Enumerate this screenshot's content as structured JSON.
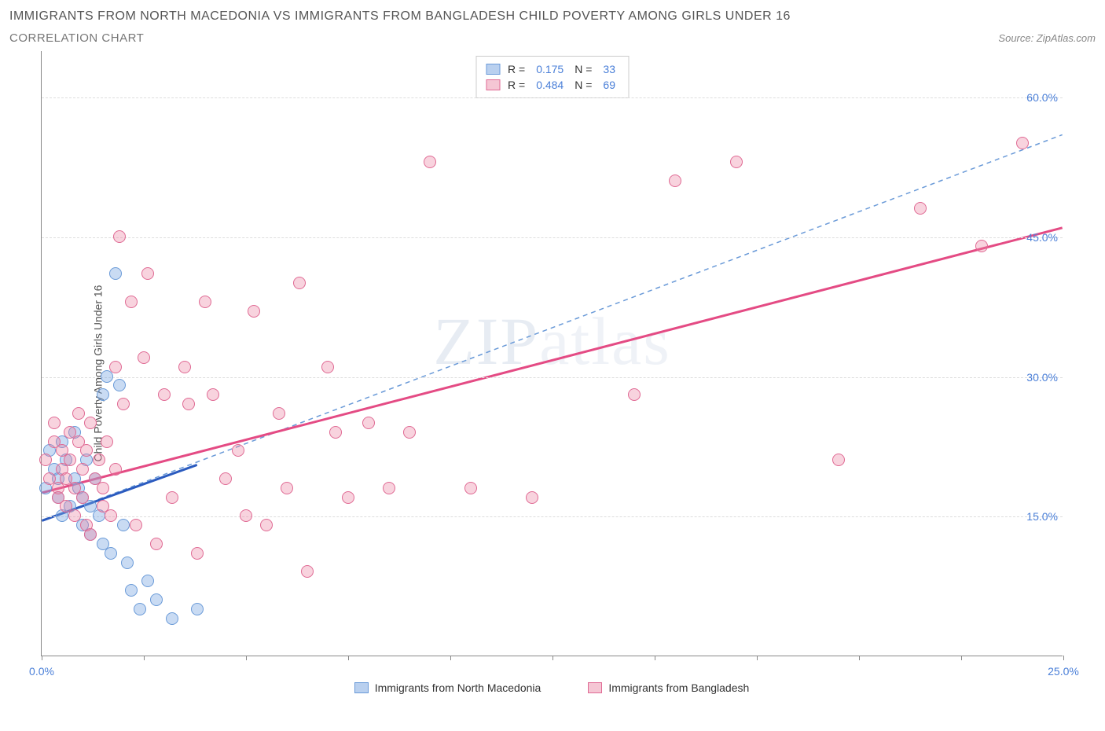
{
  "title": "IMMIGRANTS FROM NORTH MACEDONIA VS IMMIGRANTS FROM BANGLADESH CHILD POVERTY AMONG GIRLS UNDER 16",
  "subtitle": "CORRELATION CHART",
  "source_label": "Source:",
  "source_name": "ZipAtlas.com",
  "y_axis_label": "Child Poverty Among Girls Under 16",
  "watermark_bold": "ZIP",
  "watermark_thin": "atlas",
  "chart": {
    "type": "scatter",
    "background_color": "#ffffff",
    "grid_color": "#dddddd",
    "axis_color": "#888888",
    "text_color": "#555555",
    "value_color": "#4a7fd8",
    "xlim": [
      0,
      25
    ],
    "ylim": [
      0,
      65
    ],
    "xticks": [
      0,
      2.5,
      5,
      7.5,
      10,
      12.5,
      15,
      17.5,
      20,
      22.5,
      25
    ],
    "xtick_labels": {
      "0": "0.0%",
      "25": "25.0%"
    },
    "yticks": [
      15,
      30,
      45,
      60
    ],
    "ytick_labels": [
      "15.0%",
      "30.0%",
      "45.0%",
      "60.0%"
    ],
    "point_radius": 8,
    "point_opacity": 0.5,
    "series": [
      {
        "name": "Immigrants from North Macedonia",
        "color_fill": "rgba(120,165,225,0.4)",
        "color_stroke": "#6a9ad8",
        "swatch_fill": "#b9d0ef",
        "swatch_border": "#6a9ad8",
        "R": "0.175",
        "N": "33",
        "trend_solid": {
          "x1": 0,
          "y1": 14.5,
          "x2": 3.8,
          "y2": 20.5,
          "color": "#2b5bbf",
          "width": 3
        },
        "trend_dash": {
          "x1": 0,
          "y1": 14.5,
          "x2": 25,
          "y2": 56,
          "color": "#6a9ad8",
          "width": 1.5
        },
        "points": [
          [
            0.1,
            18
          ],
          [
            0.2,
            22
          ],
          [
            0.3,
            20
          ],
          [
            0.4,
            17
          ],
          [
            0.4,
            19
          ],
          [
            0.5,
            15
          ],
          [
            0.5,
            23
          ],
          [
            0.6,
            21
          ],
          [
            0.7,
            16
          ],
          [
            0.8,
            19
          ],
          [
            0.8,
            24
          ],
          [
            0.9,
            18
          ],
          [
            1.0,
            14
          ],
          [
            1.0,
            17
          ],
          [
            1.1,
            21
          ],
          [
            1.2,
            13
          ],
          [
            1.2,
            16
          ],
          [
            1.3,
            19
          ],
          [
            1.4,
            15
          ],
          [
            1.5,
            12
          ],
          [
            1.5,
            28
          ],
          [
            1.6,
            30
          ],
          [
            1.7,
            11
          ],
          [
            1.8,
            41
          ],
          [
            1.9,
            29
          ],
          [
            2.0,
            14
          ],
          [
            2.1,
            10
          ],
          [
            2.2,
            7
          ],
          [
            2.4,
            5
          ],
          [
            2.6,
            8
          ],
          [
            2.8,
            6
          ],
          [
            3.2,
            4
          ],
          [
            3.8,
            5
          ]
        ]
      },
      {
        "name": "Immigrants from Bangladesh",
        "color_fill": "rgba(235,130,160,0.35)",
        "color_stroke": "#e06a94",
        "swatch_fill": "#f5c6d4",
        "swatch_border": "#e06a94",
        "R": "0.484",
        "N": "69",
        "trend_solid": {
          "x1": 0,
          "y1": 17.5,
          "x2": 25,
          "y2": 46,
          "color": "#e44b84",
          "width": 3
        },
        "trend_dash": null,
        "points": [
          [
            0.1,
            21
          ],
          [
            0.2,
            19
          ],
          [
            0.3,
            23
          ],
          [
            0.3,
            25
          ],
          [
            0.4,
            18
          ],
          [
            0.4,
            17
          ],
          [
            0.5,
            20
          ],
          [
            0.5,
            22
          ],
          [
            0.6,
            19
          ],
          [
            0.6,
            16
          ],
          [
            0.7,
            21
          ],
          [
            0.7,
            24
          ],
          [
            0.8,
            18
          ],
          [
            0.8,
            15
          ],
          [
            0.9,
            23
          ],
          [
            0.9,
            26
          ],
          [
            1.0,
            20
          ],
          [
            1.0,
            17
          ],
          [
            1.1,
            22
          ],
          [
            1.1,
            14
          ],
          [
            1.2,
            25
          ],
          [
            1.2,
            13
          ],
          [
            1.3,
            19
          ],
          [
            1.4,
            21
          ],
          [
            1.5,
            18
          ],
          [
            1.5,
            16
          ],
          [
            1.6,
            23
          ],
          [
            1.7,
            15
          ],
          [
            1.8,
            20
          ],
          [
            1.8,
            31
          ],
          [
            1.9,
            45
          ],
          [
            2.0,
            27
          ],
          [
            2.2,
            38
          ],
          [
            2.3,
            14
          ],
          [
            2.5,
            32
          ],
          [
            2.6,
            41
          ],
          [
            2.8,
            12
          ],
          [
            3.0,
            28
          ],
          [
            3.2,
            17
          ],
          [
            3.5,
            31
          ],
          [
            3.6,
            27
          ],
          [
            3.8,
            11
          ],
          [
            4.0,
            38
          ],
          [
            4.2,
            28
          ],
          [
            4.5,
            19
          ],
          [
            4.8,
            22
          ],
          [
            5.0,
            15
          ],
          [
            5.2,
            37
          ],
          [
            5.5,
            14
          ],
          [
            5.8,
            26
          ],
          [
            6.0,
            18
          ],
          [
            6.3,
            40
          ],
          [
            6.5,
            9
          ],
          [
            7.0,
            31
          ],
          [
            7.2,
            24
          ],
          [
            7.5,
            17
          ],
          [
            8.0,
            25
          ],
          [
            8.5,
            18
          ],
          [
            9.0,
            24
          ],
          [
            9.5,
            53
          ],
          [
            10.5,
            18
          ],
          [
            12.0,
            17
          ],
          [
            14.5,
            28
          ],
          [
            15.5,
            51
          ],
          [
            17.0,
            53
          ],
          [
            19.5,
            21
          ],
          [
            21.5,
            48
          ],
          [
            23.0,
            44
          ],
          [
            24.0,
            55
          ]
        ]
      }
    ],
    "legend_labels": {
      "R": "R =",
      "N": "N ="
    }
  }
}
